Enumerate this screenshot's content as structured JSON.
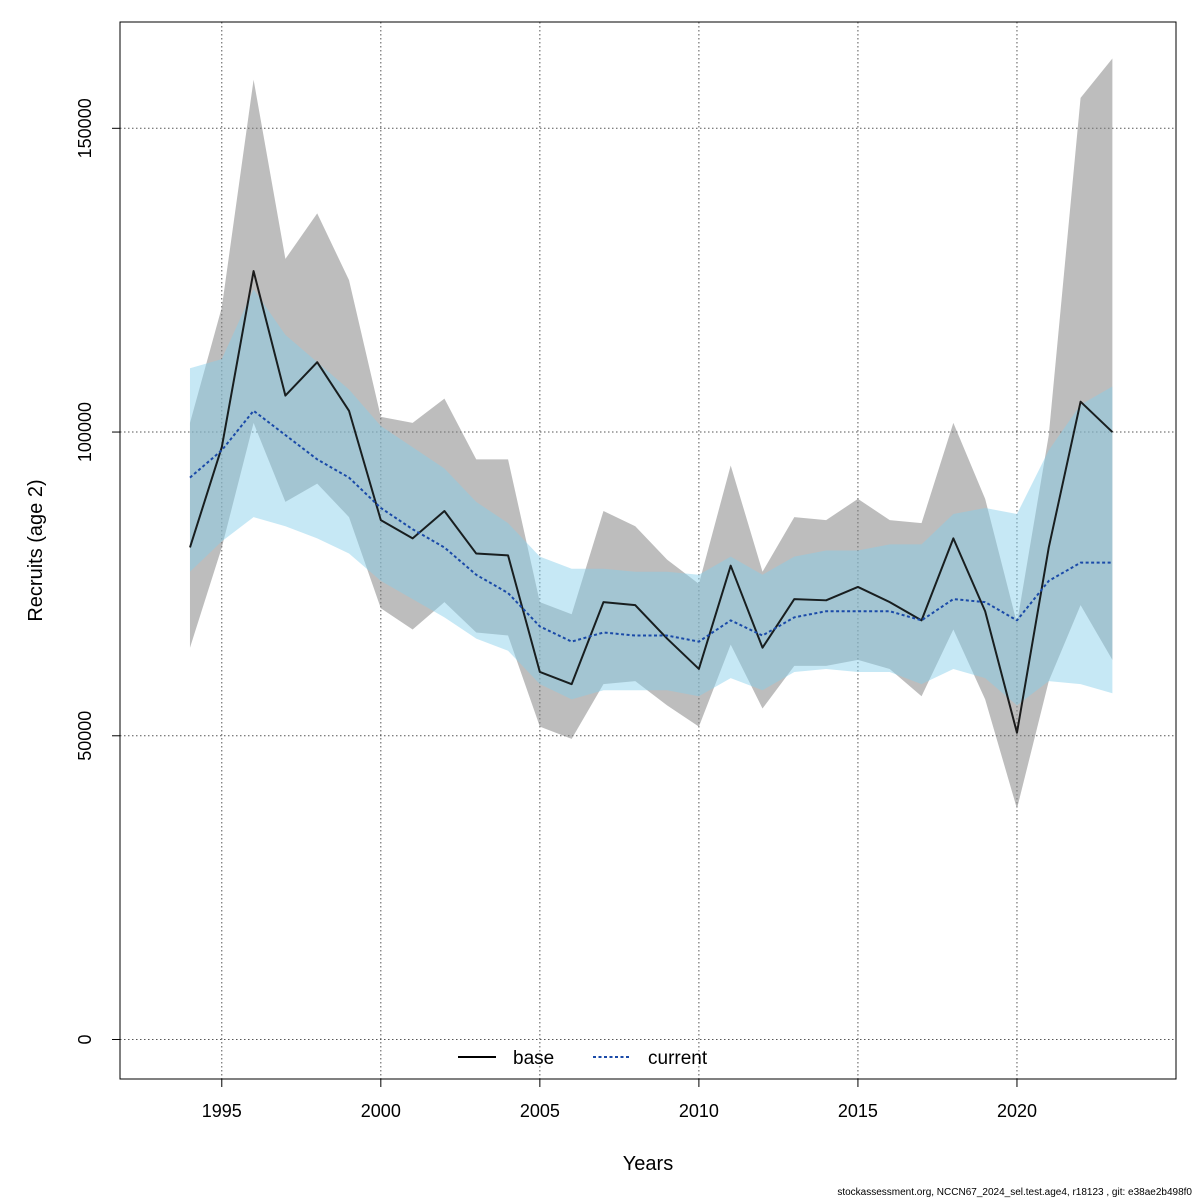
{
  "chart_data": {
    "type": "line",
    "xlabel": "Years",
    "ylabel": "Recruits (age 2)",
    "xlim": [
      1991.8,
      2025.0
    ],
    "ylim": [
      -6500,
      167500
    ],
    "xticks": [
      1995,
      2000,
      2005,
      2010,
      2015,
      2020
    ],
    "yticks": [
      0,
      50000,
      100000,
      150000
    ],
    "grid": true,
    "legend_position": "bottom",
    "x": [
      1994,
      1995,
      1996,
      1997,
      1998,
      1999,
      2000,
      2001,
      2002,
      2003,
      2004,
      2005,
      2006,
      2007,
      2008,
      2009,
      2010,
      2011,
      2012,
      2013,
      2014,
      2015,
      2016,
      2017,
      2018,
      2019,
      2020,
      2021,
      2022,
      2023
    ],
    "series": [
      {
        "name": "base",
        "color": "#000000",
        "band_color": "#808080",
        "values": [
          81000,
          97500,
          126500,
          106000,
          111500,
          103500,
          85500,
          82500,
          87000,
          80000,
          79700,
          60500,
          58500,
          72000,
          71500,
          66000,
          61000,
          78000,
          64500,
          72500,
          72300,
          74500,
          72000,
          69000,
          82500,
          70500,
          50500,
          81000,
          105000,
          100000
        ],
        "lower": [
          64500,
          81000,
          101500,
          88500,
          91500,
          86000,
          71000,
          67500,
          72000,
          67000,
          66500,
          51500,
          49500,
          58500,
          59000,
          55000,
          51500,
          65000,
          54500,
          61500,
          61500,
          62500,
          61000,
          56500,
          67500,
          56000,
          38000,
          59000,
          71500,
          62500
        ],
        "upper": [
          101500,
          120500,
          158000,
          128500,
          136000,
          125000,
          102500,
          101500,
          105500,
          95500,
          95500,
          72000,
          70000,
          87000,
          84500,
          79000,
          75000,
          94500,
          77000,
          86000,
          85500,
          89000,
          85500,
          85000,
          101500,
          89000,
          68500,
          99500,
          155000,
          161500
        ]
      },
      {
        "name": "current",
        "color": "#1a4aa8",
        "band_color": "#87ceeb",
        "values": [
          92500,
          97000,
          103500,
          99500,
          95500,
          92500,
          87500,
          84000,
          81000,
          76500,
          73500,
          68000,
          65500,
          67000,
          66500,
          66500,
          65500,
          69000,
          66500,
          69500,
          70500,
          70500,
          70500,
          69000,
          72500,
          72000,
          69000,
          75500,
          78500,
          78500
        ],
        "lower": [
          77000,
          82000,
          86000,
          84500,
          82500,
          80000,
          75500,
          72500,
          69500,
          66000,
          64000,
          58500,
          56000,
          57500,
          57500,
          57500,
          56500,
          59500,
          57500,
          60500,
          61000,
          60500,
          60500,
          58500,
          61000,
          59500,
          55000,
          59000,
          58500,
          57000
        ],
        "upper": [
          110500,
          112000,
          123500,
          116000,
          111500,
          107000,
          101000,
          97500,
          94000,
          88500,
          85000,
          79500,
          77500,
          77500,
          77000,
          77000,
          76500,
          79500,
          76500,
          79500,
          80500,
          80500,
          81500,
          81500,
          86500,
          87500,
          86500,
          97000,
          104500,
          107500
        ]
      }
    ]
  },
  "footer_note": "stockassessment.org, NCCN67_2024_sel.test.age4, r18123 , git: e38ae2b498f0"
}
